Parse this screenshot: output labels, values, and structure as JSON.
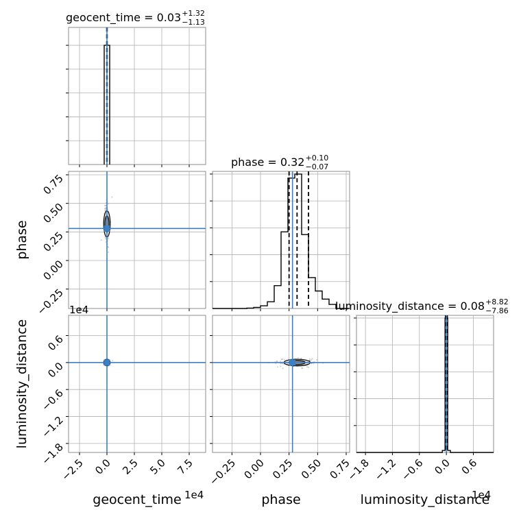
{
  "chart_data": {
    "type": "corner",
    "grid": true,
    "colors": {
      "truth": "#3d7fc4",
      "hist": "#000000",
      "scatter": "#808080",
      "grid": "#b0b0b0"
    },
    "parameters": [
      "geocent_time",
      "phase",
      "luminosity_distance"
    ],
    "axis_labels": [
      "geocent_time",
      "phase",
      "luminosity_distance"
    ],
    "offset_texts": {
      "geocent_time": "1e4",
      "luminosity_distance": "1e4"
    },
    "truths": {
      "geocent_time": 0.0,
      "phase": 0.28,
      "luminosity_distance": 0.0
    },
    "ranges": {
      "geocent_time": [
        -3.5,
        9.0
      ],
      "phase": [
        -0.42,
        0.78
      ],
      "luminosity_distance": [
        -2.0,
        1.05
      ]
    },
    "ticks": {
      "geocent_time": {
        "values": [
          -2.5,
          0.0,
          2.5,
          5.0,
          7.5
        ],
        "labels": [
          "−2.5",
          "0.0",
          "2.5",
          "5.0",
          "7.5"
        ]
      },
      "phase": {
        "values": [
          -0.25,
          0.0,
          0.25,
          0.5,
          0.75
        ],
        "labels": [
          "−0.25",
          "0.00",
          "0.25",
          "0.50",
          "0.75"
        ]
      },
      "luminosity_distance": {
        "values": [
          -1.8,
          -1.2,
          -0.6,
          0.0,
          0.6
        ],
        "labels": [
          "−1.8",
          "−1.2",
          "−0.6",
          "0.0",
          "0.6"
        ]
      }
    },
    "titles": [
      {
        "name": "geocent_time",
        "value": "0.03",
        "plus": "+1.32",
        "minus": "−1.13"
      },
      {
        "name": "phase",
        "value": "0.32",
        "plus": "+0.10",
        "minus": "−0.07"
      },
      {
        "name": "luminosity_distance",
        "value": "0.08",
        "plus": "+8.82",
        "minus": "−7.86"
      }
    ],
    "quantiles": {
      "geocent_time": [
        -0.02,
        0.0,
        0.02
      ],
      "phase": [
        0.25,
        0.32,
        0.42
      ],
      "luminosity_distance": [
        -0.02,
        0.0,
        0.02
      ]
    },
    "histograms": {
      "geocent_time": {
        "bin_edges": [
          -0.25,
          0.25
        ],
        "counts": [
          1.0
        ]
      },
      "phase": {
        "bin_edges": [
          -0.42,
          -0.36,
          -0.3,
          -0.24,
          -0.18,
          -0.12,
          -0.06,
          0.0,
          0.06,
          0.12,
          0.18,
          0.24,
          0.3,
          0.36,
          0.42,
          0.48,
          0.54,
          0.6,
          0.66,
          0.72,
          0.78
        ],
        "counts": [
          0.0,
          0.0,
          0.0,
          0.0,
          0.0,
          0.003,
          0.008,
          0.02,
          0.05,
          0.17,
          0.57,
          0.97,
          1.0,
          0.55,
          0.23,
          0.13,
          0.07,
          0.03,
          0.0,
          0.0
        ]
      },
      "luminosity_distance": {
        "bin_edges": [
          -2.0,
          -0.09,
          -0.03,
          0.03,
          0.09,
          1.05
        ],
        "counts": [
          0.0,
          0.015,
          1.0,
          0.015,
          0.0
        ]
      }
    },
    "hist_ylim": {
      "geocent_time": [
        0,
        1.15
      ],
      "phase": [
        0,
        1.02
      ],
      "luminosity_distance": [
        0,
        1.02
      ]
    }
  }
}
